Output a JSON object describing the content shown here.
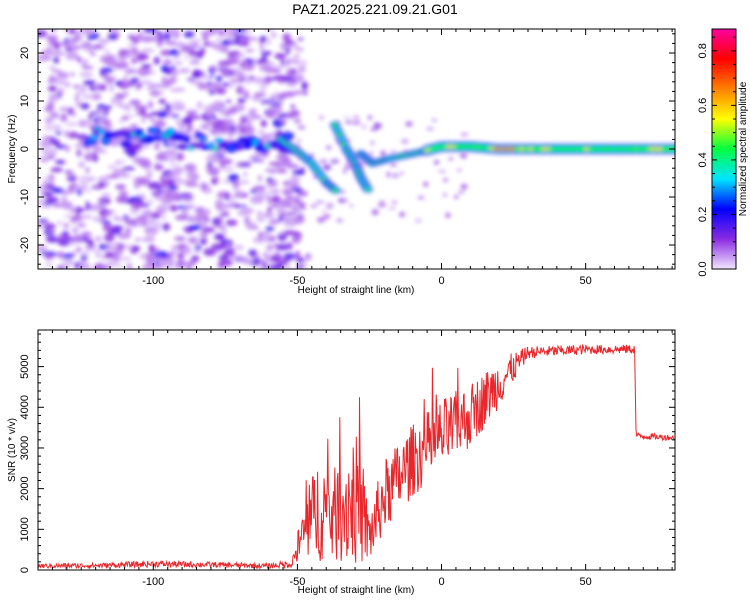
{
  "title": "PAZ1.2025.221.09.21.G01",
  "chart_data": [
    {
      "type": "heatmap",
      "xlabel": "Height of straight line (km)",
      "ylabel": "Frequency (Hz)",
      "xlim": [
        -140,
        81
      ],
      "ylim": [
        -25,
        25
      ],
      "xticks": [
        "-100",
        "-50",
        "0",
        "50"
      ],
      "xtick_values": [
        -100,
        -50,
        0,
        50
      ],
      "yticks": [
        "-20",
        "-10",
        "0",
        "10",
        "20"
      ],
      "ytick_values": [
        -20,
        -10,
        0,
        10,
        20
      ],
      "colorbar": {
        "label": "Normalized spectral amplitude",
        "range": [
          0,
          0.88
        ],
        "ticks": [
          "0.0",
          "0.2",
          "0.4",
          "0.6",
          "0.8"
        ],
        "tick_values": [
          0,
          0.2,
          0.4,
          0.6,
          0.8
        ],
        "colormap": [
          "#f2e6ff",
          "#8a2be2",
          "#0000ff",
          "#00e5ff",
          "#00ff40",
          "#ffff00",
          "#ff8000",
          "#ff0000",
          "#ff00a0"
        ]
      },
      "ridge": [
        {
          "x": -120,
          "f": 2.5
        },
        {
          "x": -100,
          "f": 2.5
        },
        {
          "x": -85,
          "f": 1.5
        },
        {
          "x": -70,
          "f": 0.5
        },
        {
          "x": -55,
          "f": 2
        },
        {
          "x": -50,
          "f": 0
        },
        {
          "x": -45,
          "f": -2
        },
        {
          "x": -40,
          "f": -6
        },
        {
          "x": -35,
          "f": 1
        },
        {
          "x": -25,
          "f": -3
        },
        {
          "x": -20,
          "f": -2
        },
        {
          "x": -10,
          "f": -1
        },
        {
          "x": 0,
          "f": 0.5
        },
        {
          "x": 10,
          "f": 0.5
        },
        {
          "x": 20,
          "f": 0
        },
        {
          "x": 40,
          "f": 0
        },
        {
          "x": 60,
          "f": 0
        },
        {
          "x": 81,
          "f": 0
        }
      ]
    },
    {
      "type": "line",
      "xlabel": "Height of straight line (km)",
      "ylabel": "SNR (10 * v/v)",
      "xlim": [
        -140,
        81
      ],
      "ylim": [
        0,
        5900
      ],
      "xticks": [
        "-100",
        "-50",
        "0",
        "50"
      ],
      "xtick_values": [
        -100,
        -50,
        0,
        50
      ],
      "yticks": [
        "0",
        "1000",
        "2000",
        "3000",
        "4000",
        "5000"
      ],
      "ytick_values": [
        0,
        1000,
        2000,
        3000,
        4000,
        5000
      ],
      "line_color": "#e8262b",
      "envelope": [
        {
          "x": -140,
          "base": 100,
          "noise": 60
        },
        {
          "x": -120,
          "base": 110,
          "noise": 60
        },
        {
          "x": -100,
          "base": 150,
          "noise": 80
        },
        {
          "x": -80,
          "base": 130,
          "noise": 70
        },
        {
          "x": -60,
          "base": 100,
          "noise": 60
        },
        {
          "x": -52,
          "base": 150,
          "noise": 100
        },
        {
          "x": -48,
          "base": 900,
          "noise": 700
        },
        {
          "x": -42,
          "base": 1600,
          "noise": 1400
        },
        {
          "x": -38,
          "base": 1300,
          "noise": 1100
        },
        {
          "x": -30,
          "base": 1800,
          "noise": 1700
        },
        {
          "x": -25,
          "base": 800,
          "noise": 700
        },
        {
          "x": -20,
          "base": 1800,
          "noise": 900
        },
        {
          "x": -10,
          "base": 2700,
          "noise": 900
        },
        {
          "x": 0,
          "base": 3300,
          "noise": 900
        },
        {
          "x": 10,
          "base": 3800,
          "noise": 800
        },
        {
          "x": 20,
          "base": 4600,
          "noise": 600
        },
        {
          "x": 30,
          "base": 5350,
          "noise": 150
        },
        {
          "x": 50,
          "base": 5420,
          "noise": 120
        },
        {
          "x": 67,
          "base": 5430,
          "noise": 110
        },
        {
          "x": 67.5,
          "base": 3300,
          "noise": 80
        },
        {
          "x": 81,
          "base": 3250,
          "noise": 70
        }
      ]
    }
  ]
}
